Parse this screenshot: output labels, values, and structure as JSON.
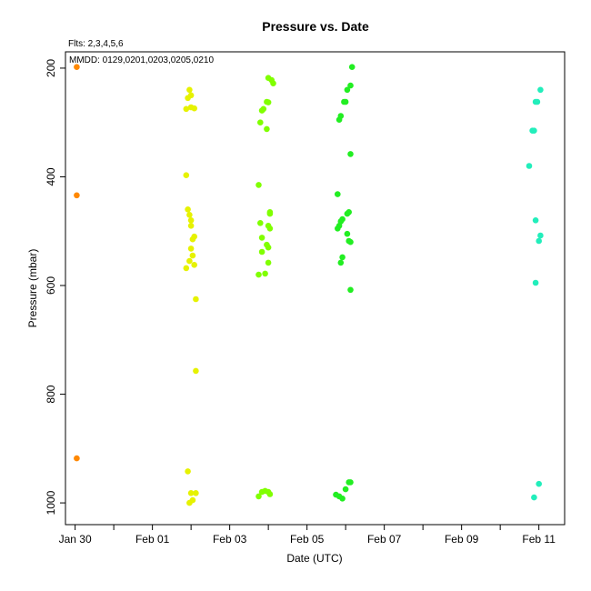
{
  "chart_data": {
    "type": "scatter",
    "title": "Pressure  vs. Date",
    "xlabel": "Date (UTC)",
    "ylabel": "Pressure (mbar)",
    "annotations": [
      "Flts: 2,3,4,5,6",
      "MMDD: 0129,0201,0203,0205,0210"
    ],
    "x_unit": "date (UTC, 2023)",
    "xlim": [
      "2023-01-29T18:00",
      "2023-02-11T16:00"
    ],
    "ylim": [
      1040,
      170
    ],
    "y_reversed": true,
    "x_ticks": [
      {
        "label": "Jan 30",
        "date": "2023-01-30T00:00"
      },
      {
        "label": "Feb 01",
        "date": "2023-02-01T00:00"
      },
      {
        "label": "Feb 03",
        "date": "2023-02-03T00:00"
      },
      {
        "label": "Feb 05",
        "date": "2023-02-05T00:00"
      },
      {
        "label": "Feb 07",
        "date": "2023-02-07T00:00"
      },
      {
        "label": "Feb 09",
        "date": "2023-02-09T00:00"
      },
      {
        "label": "Feb 11",
        "date": "2023-02-11T00:00"
      }
    ],
    "x_minor_ticks": [
      "2023-01-31T00:00",
      "2023-02-02T00:00",
      "2023-02-04T00:00",
      "2023-02-06T00:00",
      "2023-02-08T00:00",
      "2023-02-10T00:00"
    ],
    "y_ticks": [
      200,
      400,
      600,
      800,
      1000
    ],
    "grid": false,
    "series": [
      {
        "color": "#ff8800",
        "points": [
          [
            "2023-01-30T01:00",
            198
          ],
          [
            "2023-01-30T01:00",
            434
          ],
          [
            "2023-01-30T01:00",
            918
          ]
        ]
      },
      {
        "color": "#e6f200",
        "points": [
          [
            "2023-02-01T21:00",
            275
          ],
          [
            "2023-02-01T23:00",
            240
          ],
          [
            "2023-02-01T22:00",
            255
          ],
          [
            "2023-02-02T00:00",
            272
          ],
          [
            "2023-02-02T00:00",
            250
          ],
          [
            "2023-02-02T02:00",
            274
          ],
          [
            "2023-02-01T21:00",
            397
          ],
          [
            "2023-02-01T22:00",
            460
          ],
          [
            "2023-02-01T23:00",
            470
          ],
          [
            "2023-02-02T00:00",
            480
          ],
          [
            "2023-02-02T00:00",
            490
          ],
          [
            "2023-02-02T01:00",
            515
          ],
          [
            "2023-02-02T02:00",
            510
          ],
          [
            "2023-02-02T00:00",
            532
          ],
          [
            "2023-02-02T01:00",
            545
          ],
          [
            "2023-02-01T23:00",
            555
          ],
          [
            "2023-02-02T02:00",
            562
          ],
          [
            "2023-02-01T21:00",
            568
          ],
          [
            "2023-02-02T03:00",
            625
          ],
          [
            "2023-02-02T03:00",
            757
          ],
          [
            "2023-02-01T22:00",
            942
          ],
          [
            "2023-02-02T00:00",
            982
          ],
          [
            "2023-02-02T03:00",
            982
          ],
          [
            "2023-02-02T01:00",
            995
          ],
          [
            "2023-02-01T23:00",
            1000
          ]
        ]
      },
      {
        "color": "#80ff00",
        "points": [
          [
            "2023-02-04T00:00",
            218
          ],
          [
            "2023-02-04T02:00",
            222
          ],
          [
            "2023-02-04T03:00",
            228
          ],
          [
            "2023-02-03T23:00",
            262
          ],
          [
            "2023-02-04T00:00",
            263
          ],
          [
            "2023-02-03T21:00",
            275
          ],
          [
            "2023-02-03T20:00",
            278
          ],
          [
            "2023-02-03T19:00",
            300
          ],
          [
            "2023-02-03T23:00",
            312
          ],
          [
            "2023-02-03T18:00",
            415
          ],
          [
            "2023-02-04T01:00",
            465
          ],
          [
            "2023-02-04T01:00",
            468
          ],
          [
            "2023-02-03T19:00",
            485
          ],
          [
            "2023-02-04T00:00",
            490
          ],
          [
            "2023-02-04T01:00",
            495
          ],
          [
            "2023-02-03T20:00",
            512
          ],
          [
            "2023-02-03T23:00",
            525
          ],
          [
            "2023-02-04T00:00",
            530
          ],
          [
            "2023-02-03T20:00",
            538
          ],
          [
            "2023-02-04T00:00",
            558
          ],
          [
            "2023-02-03T18:00",
            580
          ],
          [
            "2023-02-03T22:00",
            578
          ],
          [
            "2023-02-03T20:00",
            980
          ],
          [
            "2023-02-03T22:00",
            978
          ],
          [
            "2023-02-04T00:00",
            980
          ],
          [
            "2023-02-04T01:00",
            984
          ],
          [
            "2023-02-03T18:00",
            988
          ]
        ]
      },
      {
        "color": "#22ee22",
        "points": [
          [
            "2023-02-06T04:00",
            198
          ],
          [
            "2023-02-06T03:00",
            232
          ],
          [
            "2023-02-06T01:00",
            240
          ],
          [
            "2023-02-05T23:00",
            262
          ],
          [
            "2023-02-06T00:00",
            262
          ],
          [
            "2023-02-05T21:00",
            288
          ],
          [
            "2023-02-05T20:00",
            295
          ],
          [
            "2023-02-06T03:00",
            358
          ],
          [
            "2023-02-05T19:00",
            432
          ],
          [
            "2023-02-06T02:00",
            465
          ],
          [
            "2023-02-06T01:00",
            468
          ],
          [
            "2023-02-05T22:00",
            478
          ],
          [
            "2023-02-05T21:00",
            482
          ],
          [
            "2023-02-05T20:00",
            490
          ],
          [
            "2023-02-05T19:00",
            495
          ],
          [
            "2023-02-06T01:00",
            505
          ],
          [
            "2023-02-06T02:00",
            518
          ],
          [
            "2023-02-06T03:00",
            520
          ],
          [
            "2023-02-05T22:00",
            548
          ],
          [
            "2023-02-05T21:00",
            558
          ],
          [
            "2023-02-06T03:00",
            608
          ],
          [
            "2023-02-06T02:00",
            962
          ],
          [
            "2023-02-06T03:00",
            962
          ],
          [
            "2023-02-06T00:00",
            975
          ],
          [
            "2023-02-05T18:00",
            985
          ],
          [
            "2023-02-05T20:00",
            988
          ],
          [
            "2023-02-05T22:00",
            992
          ]
        ]
      },
      {
        "color": "#22eebb",
        "points": [
          [
            "2023-02-11T01:00",
            240
          ],
          [
            "2023-02-10T22:00",
            262
          ],
          [
            "2023-02-10T23:00",
            262
          ],
          [
            "2023-02-10T20:00",
            315
          ],
          [
            "2023-02-10T21:00",
            315
          ],
          [
            "2023-02-10T18:00",
            380
          ],
          [
            "2023-02-10T22:00",
            480
          ],
          [
            "2023-02-11T01:00",
            508
          ],
          [
            "2023-02-11T00:00",
            518
          ],
          [
            "2023-02-10T22:00",
            595
          ],
          [
            "2023-02-11T00:00",
            965
          ],
          [
            "2023-02-10T21:00",
            990
          ]
        ]
      }
    ]
  }
}
